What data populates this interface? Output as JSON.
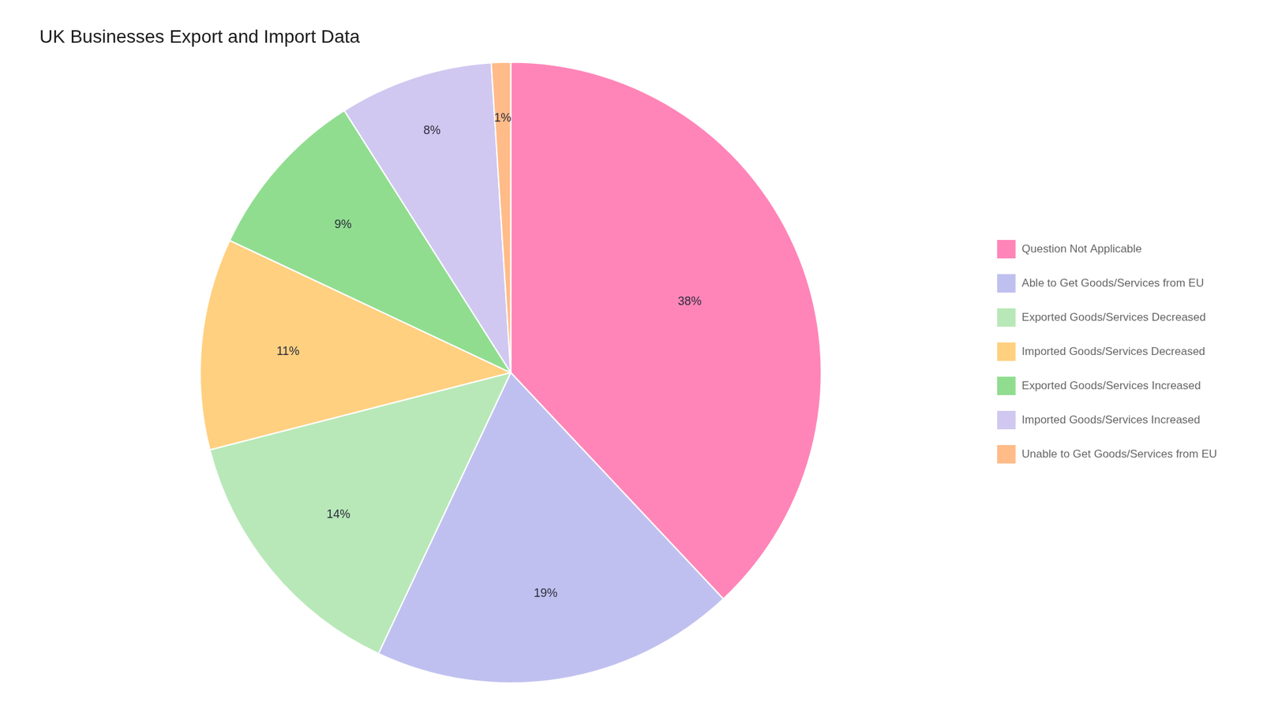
{
  "chart_data": {
    "type": "pie",
    "title": "UK Businesses Export and Import Data",
    "categories": [
      "Question Not Applicable",
      "Able to Get Goods/Services from EU",
      "Exported Goods/Services Decreased",
      "Imported Goods/Services Decreased",
      "Exported Goods/Services Increased",
      "Imported Goods/Services Increased",
      "Unable to Get Goods/Services from EU"
    ],
    "values": [
      38,
      19,
      14,
      11,
      9,
      8,
      1
    ],
    "value_labels": [
      "38%",
      "19%",
      "14%",
      "11%",
      "9%",
      "8%",
      "1%"
    ],
    "colors": [
      "#FF85B8",
      "#C0C0F0",
      "#B8E8B8",
      "#FFD080",
      "#90DD90",
      "#D0C8F0",
      "#FFBB88"
    ],
    "data_labels": true,
    "legend": "right"
  }
}
